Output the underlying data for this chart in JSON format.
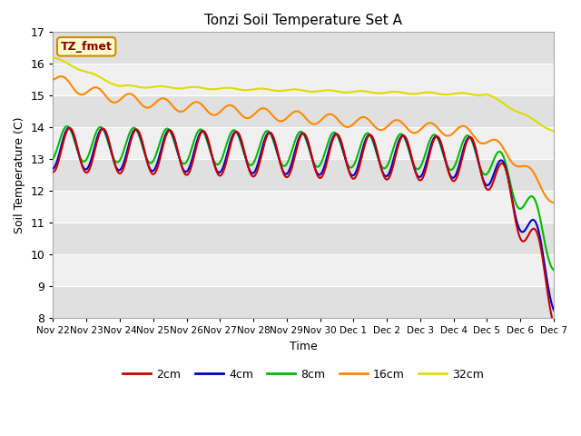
{
  "title": "Tonzi Soil Temperature Set A",
  "xlabel": "Time",
  "ylabel": "Soil Temperature (C)",
  "ylim": [
    8.0,
    17.0
  ],
  "yticks": [
    8.0,
    9.0,
    10.0,
    11.0,
    12.0,
    13.0,
    14.0,
    15.0,
    16.0,
    17.0
  ],
  "xtick_labels": [
    "Nov 22",
    "Nov 23",
    "Nov 24",
    "Nov 25",
    "Nov 26",
    "Nov 27",
    "Nov 28",
    "Nov 29",
    "Nov 30",
    "Dec 1",
    "Dec 2",
    "Dec 3",
    "Dec 4",
    "Dec 5",
    "Dec 6",
    "Dec 7"
  ],
  "colors": {
    "2cm": "#cc0000",
    "4cm": "#0000cc",
    "8cm": "#00bb00",
    "16cm": "#ff8800",
    "32cm": "#dddd00"
  },
  "legend_label": "TZ_fmet",
  "n_points": 360
}
